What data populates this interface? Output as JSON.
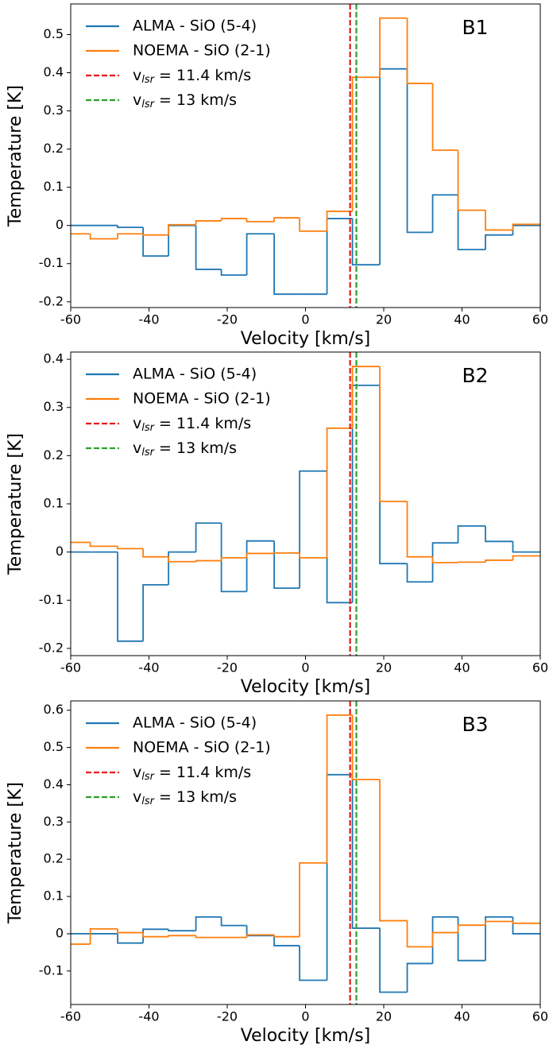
{
  "chart_data": [
    {
      "type": "step",
      "panel_label": "B1",
      "xlabel": "Velocity [km/s]",
      "ylabel": "Temperature [K]",
      "x": [
        -60,
        -55,
        -48,
        -41.5,
        -35,
        -28,
        -21.5,
        -15,
        -8,
        -1.5,
        5.5,
        12,
        19,
        26,
        32.5,
        39,
        46,
        53
      ],
      "xlim": [
        -60,
        60
      ],
      "xticks": [
        -60,
        -40,
        -20,
        0,
        20,
        40,
        60
      ],
      "ylim": [
        -0.215,
        0.58
      ],
      "yticks": [
        -0.2,
        -0.1,
        0.0,
        0.1,
        0.2,
        0.3,
        0.4,
        0.5
      ],
      "series": [
        {
          "name": "ALMA - SiO (5-4)",
          "color": "#1f77b4",
          "values": [
            0,
            0,
            -0.005,
            -0.08,
            0.0,
            -0.115,
            -0.13,
            -0.022,
            -0.18,
            -0.18,
            0.018,
            -0.103,
            0.41,
            -0.018,
            0.08,
            -0.063,
            -0.025,
            0.0
          ]
        },
        {
          "name": "NOEMA - SiO (2-1)",
          "color": "#ff7f0e",
          "values": [
            -0.022,
            -0.035,
            -0.022,
            -0.025,
            0.002,
            0.012,
            0.018,
            0.01,
            0.02,
            -0.015,
            0.037,
            0.388,
            0.543,
            0.372,
            0.197,
            0.04,
            -0.012,
            0.003
          ]
        }
      ],
      "vlines": [
        {
          "x": 11.4,
          "color": "#e41a1c",
          "label": [
            "v",
            "lsr",
            " = 11.4 km/s"
          ]
        },
        {
          "x": 13,
          "color": "#2ca02c",
          "label": [
            "v",
            "lsr",
            " = 13 km/s"
          ]
        }
      ]
    },
    {
      "type": "step",
      "panel_label": "B2",
      "xlabel": "Velocity [km/s]",
      "ylabel": "Temperature [K]",
      "x": [
        -60,
        -55,
        -48,
        -41.5,
        -35,
        -28,
        -21.5,
        -15,
        -8,
        -1.5,
        5.5,
        12,
        19,
        26,
        32.5,
        39,
        46,
        53
      ],
      "xlim": [
        -60,
        60
      ],
      "xticks": [
        -60,
        -40,
        -20,
        0,
        20,
        40,
        60
      ],
      "ylim": [
        -0.215,
        0.415
      ],
      "yticks": [
        -0.2,
        -0.1,
        0.0,
        0.1,
        0.2,
        0.3,
        0.4
      ],
      "series": [
        {
          "name": "ALMA - SiO (5-4)",
          "color": "#1f77b4",
          "values": [
            0,
            0,
            -0.185,
            -0.068,
            0,
            0.06,
            -0.082,
            0.023,
            -0.075,
            0.168,
            -0.105,
            0.346,
            -0.024,
            -0.062,
            0.019,
            0.054,
            0.022,
            0.0
          ]
        },
        {
          "name": "NOEMA - SiO (2-1)",
          "color": "#ff7f0e",
          "values": [
            0.02,
            0.012,
            0.007,
            -0.01,
            -0.02,
            -0.018,
            -0.012,
            -0.003,
            -0.002,
            -0.012,
            0.257,
            0.385,
            0.105,
            -0.01,
            -0.022,
            -0.021,
            -0.017,
            -0.008
          ]
        }
      ],
      "vlines": [
        {
          "x": 11.4,
          "color": "#e41a1c",
          "label": [
            "v",
            "lsr",
            " = 11.4 km/s"
          ]
        },
        {
          "x": 13,
          "color": "#2ca02c",
          "label": [
            "v",
            "lsr",
            " = 13 km/s"
          ]
        }
      ]
    },
    {
      "type": "step",
      "panel_label": "B3",
      "xlabel": "Velocity [km/s]",
      "ylabel": "Temperature [K]",
      "x": [
        -60,
        -55,
        -48,
        -41.5,
        -35,
        -28,
        -21.5,
        -15,
        -8,
        -1.5,
        5.5,
        12,
        19,
        26,
        32.5,
        39,
        46,
        53
      ],
      "xlim": [
        -60,
        60
      ],
      "xticks": [
        -60,
        -40,
        -20,
        0,
        20,
        40,
        60
      ],
      "ylim": [
        -0.19,
        0.625
      ],
      "yticks": [
        -0.1,
        0.0,
        0.1,
        0.2,
        0.3,
        0.4,
        0.5,
        0.6
      ],
      "series": [
        {
          "name": "ALMA - SiO (5-4)",
          "color": "#1f77b4",
          "values": [
            0,
            0,
            -0.025,
            0.012,
            0.008,
            0.045,
            0.022,
            -0.005,
            -0.032,
            -0.125,
            0.427,
            0.015,
            -0.157,
            -0.08,
            0.045,
            -0.072,
            0.045,
            0.0
          ]
        },
        {
          "name": "NOEMA - SiO (2-1)",
          "color": "#ff7f0e",
          "values": [
            -0.028,
            0.013,
            0.003,
            -0.008,
            -0.005,
            -0.01,
            -0.01,
            -0.003,
            -0.008,
            0.19,
            0.587,
            0.414,
            0.035,
            -0.035,
            0.003,
            0.023,
            0.033,
            0.028
          ]
        }
      ],
      "vlines": [
        {
          "x": 11.4,
          "color": "#e41a1c",
          "label": [
            "v",
            "lsr",
            " = 11.4 km/s"
          ]
        },
        {
          "x": 13,
          "color": "#2ca02c",
          "label": [
            "v",
            "lsr",
            " = 13 km/s"
          ]
        }
      ]
    }
  ]
}
